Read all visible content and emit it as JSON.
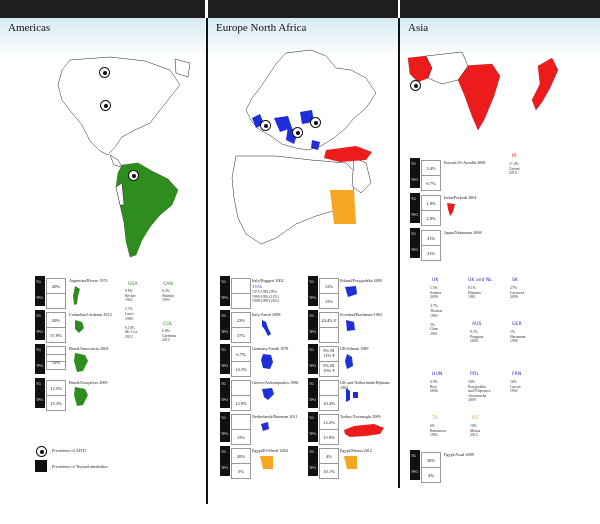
{
  "panels": {
    "americas": "Americas",
    "europe": "Europe North Africa",
    "asia": "Asia"
  },
  "legend": {
    "aitd": "Prevalence of AITD",
    "antibodies": "Prevalence of Thyroid antibodies"
  },
  "labels": {
    "tg": "TG",
    "tpo": "TPO"
  },
  "colors": {
    "green": "#2f8c1e",
    "blue": "#1f2fd8",
    "red": "#ec1c1c",
    "orange": "#f5a623",
    "dark": "#1e1e1e"
  },
  "americas_rows": [
    {
      "cite": "Argentina/Rivero 1974",
      "tg": "20%",
      "tpo": ""
    },
    {
      "cite": "Columbia/Cárdenas 2012",
      "tg": "20%",
      "tpo": "37.8%"
    },
    {
      "cite": "Brazil/Innocencio 2004",
      "tg": "",
      "tpo": "12%"
    },
    {
      "cite": "Brazil/Gonçalves 2009",
      "tg": "12.5%",
      "tpo": "15.3%"
    }
  ],
  "americas_side": {
    "usa": {
      "code": "USA",
      "text": "9.8%\nBecker\n1963\n\n2.1%\nLinos\n1980\n\n6.15%\nMc Coy\n2012"
    },
    "can": {
      "code": "CAN",
      "text": "8.2%\nShinsky\n1993"
    },
    "col": {
      "code": "COL",
      "text": "9.8%\nCárdenas\n2012"
    }
  },
  "europe_left": [
    {
      "cite": "Italy/Ruggeri 2002",
      "extra": "TSAb",
      "note": "1975-1982 (0%)\n1990-1992 (12%)\n1998-1999 (26%)",
      "tg": "",
      "tpo": ""
    },
    {
      "cite": "Italy/Aresti 2008",
      "tg": "23%",
      "tpo": "37%"
    },
    {
      "cite": "Germany/Genth 1978",
      "tg": "6.7%",
      "tpo": "14.3%"
    },
    {
      "cite": "Greece/Ardonopoulos 1996",
      "tg": "",
      "tpo": "12.9%"
    },
    {
      "cite": "Netherlands/Bateman 2011",
      "tg": "",
      "tpo": "15%"
    },
    {
      "cite": "Egypt/El-Sherif 2004",
      "tg": "20%",
      "tpo": "5%"
    }
  ],
  "europe_right": [
    {
      "cite": "Poland/Przygodzka 2009",
      "tg": "12%",
      "tpo": "15%"
    },
    {
      "cite": "Scotland/Buchanan 1963",
      "tg": "24.4% F",
      "tpo": ""
    },
    {
      "cite": "UK/Silman 1989",
      "tg": "5% M\n11% F",
      "tpo": "5% M\n15% F"
    },
    {
      "cite": "UK and Netherlands/Hijmans 1961",
      "tg": "",
      "tpo": "10.4%"
    },
    {
      "cite": "Turkey/Tuvanoglu 2009",
      "tg": "12.2%",
      "tpo": "15.9%"
    },
    {
      "cite": "Egypt/Mousa 2012",
      "tg": "4%",
      "tpo": "10.1%"
    }
  ],
  "asia_rows": [
    {
      "cite": "Kuwait/Al-Awadhi 2008",
      "tg": "3.4%",
      "tpo": "6.7%"
    },
    {
      "cite": "India/Porkodi 2004",
      "tg": "1.8%",
      "tpo": "2.8%"
    },
    {
      "cite": "Japan/Nakamura 2008",
      "tg": "31%",
      "tpo": "31%"
    },
    {
      "cite": "Egypt/Assal 2009",
      "tg": "30%",
      "tpo": "4%"
    }
  ],
  "asia_side": {
    "ir": {
      "code": "IR",
      "text": "17.4%\nZayeni\n2010"
    }
  },
  "europe_side": [
    {
      "code": "UK",
      "text": "1.5%\nSomers\n2009\n\n2.7%\nThomas\n1983\n\n5%\nChan\n2001"
    },
    {
      "code": "UK and NL",
      "text": "8.1%\nHijmans\n1961"
    },
    {
      "code": "SK",
      "text": "27%\nLazurová\n2009"
    },
    {
      "code": "AUS",
      "text": "9.1%\nPongratz\n2000"
    },
    {
      "code": "GER",
      "text": "1%\nHerrmann\n1990"
    },
    {
      "code": "HUN",
      "text": "6.9%\nBiro\n2006"
    },
    {
      "code": "POL",
      "text": "16%\nPrzygodzka\nand Filipowicz\n-Sosnowska\n2009"
    },
    {
      "code": "FRN",
      "text": "16%\nCarron\n1992"
    },
    {
      "code": "TR",
      "text": "6%\nBonamour\n1992"
    },
    {
      "code": "EG",
      "text": "10%\nMousa\n2012"
    }
  ]
}
